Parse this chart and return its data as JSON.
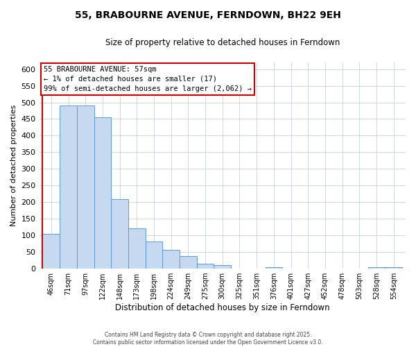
{
  "title": "55, BRABOURNE AVENUE, FERNDOWN, BH22 9EH",
  "subtitle": "Size of property relative to detached houses in Ferndown",
  "xlabel": "Distribution of detached houses by size in Ferndown",
  "ylabel": "Number of detached properties",
  "categories": [
    "46sqm",
    "71sqm",
    "97sqm",
    "122sqm",
    "148sqm",
    "173sqm",
    "198sqm",
    "224sqm",
    "249sqm",
    "275sqm",
    "300sqm",
    "325sqm",
    "351sqm",
    "376sqm",
    "401sqm",
    "427sqm",
    "452sqm",
    "478sqm",
    "503sqm",
    "528sqm",
    "554sqm"
  ],
  "values": [
    105,
    490,
    490,
    455,
    208,
    122,
    82,
    57,
    37,
    15,
    10,
    0,
    0,
    5,
    0,
    0,
    0,
    0,
    0,
    5,
    5
  ],
  "bar_color": "#c6d9f0",
  "bar_edge_color": "#5b9bd5",
  "highlight_line_color": "#cc0000",
  "annotation_box_text": "55 BRABOURNE AVENUE: 57sqm\n← 1% of detached houses are smaller (17)\n99% of semi-detached houses are larger (2,062) →",
  "annotation_box_color": "#cc0000",
  "annotation_box_bg": "#ffffff",
  "ylim": [
    0,
    620
  ],
  "yticks": [
    0,
    50,
    100,
    150,
    200,
    250,
    300,
    350,
    400,
    450,
    500,
    550,
    600
  ],
  "footnote1": "Contains HM Land Registry data © Crown copyright and database right 2025.",
  "footnote2": "Contains public sector information licensed under the Open Government Licence v3.0.",
  "background_color": "#ffffff",
  "grid_color": "#d0d8e8",
  "title_fontsize": 10,
  "subtitle_fontsize": 8.5,
  "bar_width": 1.0
}
